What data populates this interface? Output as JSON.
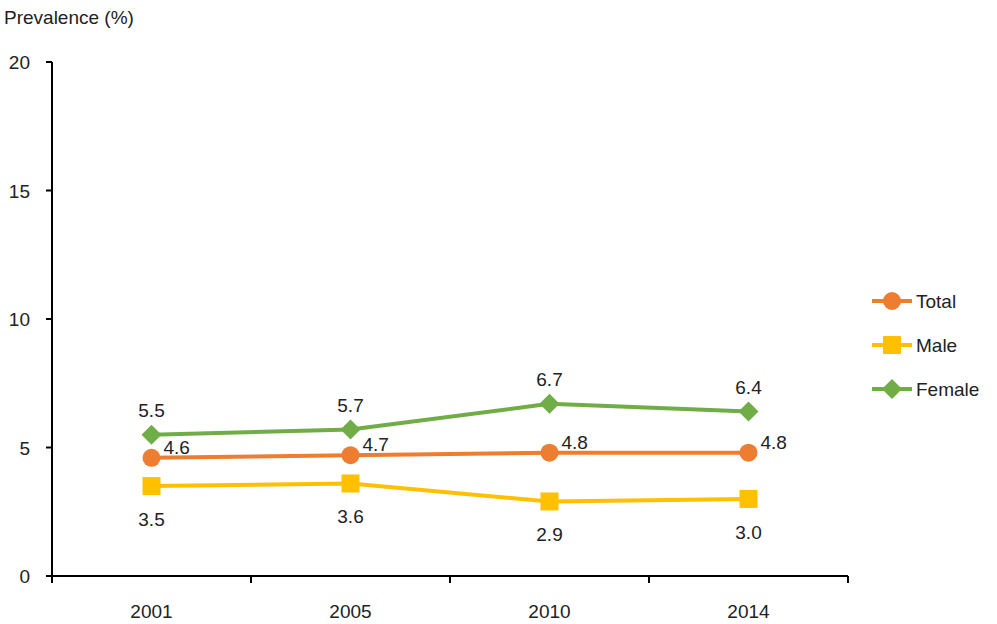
{
  "chart_data": {
    "type": "line",
    "y_label": "Prevalence (%)",
    "categories": [
      "2001",
      "2005",
      "2010",
      "2014"
    ],
    "series": [
      {
        "name": "Total",
        "color": "#ed7d31",
        "marker": "circle",
        "values": [
          4.6,
          4.7,
          4.8,
          4.8
        ]
      },
      {
        "name": "Male",
        "color": "#ffc000",
        "marker": "square",
        "values": [
          3.5,
          3.6,
          2.9,
          3.0
        ],
        "value_labels": [
          "3.5",
          "3.6",
          "2.9",
          "3.0"
        ]
      },
      {
        "name": "Female",
        "color": "#70ad47",
        "marker": "diamond",
        "values": [
          5.5,
          5.7,
          6.7,
          6.4
        ]
      }
    ],
    "ylim": [
      0,
      20
    ],
    "yticks": [
      0,
      5,
      10,
      15,
      20
    ],
    "grid": false,
    "legend": "right",
    "data_labels": true
  }
}
